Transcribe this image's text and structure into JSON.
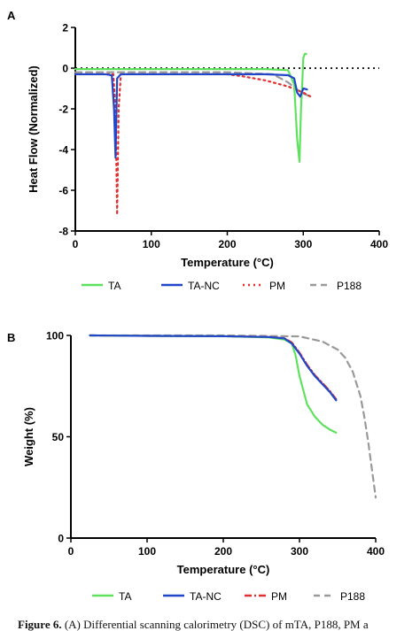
{
  "chart_data": [
    {
      "panel": "A",
      "type": "line",
      "title": "",
      "xlabel": "Temperature (°C)",
      "ylabel": "Heat Flow (Normalized)",
      "xlim": [
        0,
        400
      ],
      "ylim": [
        -8,
        2
      ],
      "xticks": [
        0,
        100,
        200,
        300,
        400
      ],
      "yticks": [
        2,
        0,
        -2,
        -4,
        -6,
        -8
      ],
      "reference_line": {
        "y": 0,
        "style": "dotted",
        "color": "#000000"
      },
      "legend_position": "bottom",
      "series": [
        {
          "name": "TA",
          "color": "#5ee25e",
          "dash": "solid",
          "x": [
            0,
            50,
            100,
            200,
            250,
            280,
            288,
            292,
            295,
            297,
            299,
            300,
            302,
            304
          ],
          "y": [
            -0.05,
            -0.05,
            -0.05,
            -0.05,
            -0.05,
            -0.1,
            -0.8,
            -3.5,
            -4.6,
            -2.0,
            -0.5,
            0.5,
            0.7,
            0.7
          ]
        },
        {
          "name": "TA-NC",
          "color": "#2146c7",
          "dash": "solid",
          "x": [
            0,
            40,
            48,
            51,
            53,
            55,
            60,
            100,
            200,
            250,
            280,
            288,
            292,
            296,
            300,
            305
          ],
          "y": [
            -0.3,
            -0.3,
            -0.35,
            -2.0,
            -4.4,
            -0.5,
            -0.3,
            -0.3,
            -0.3,
            -0.3,
            -0.35,
            -0.5,
            -1.2,
            -1.4,
            -1.0,
            -1.05
          ]
        },
        {
          "name": "PM",
          "color": "#e03030",
          "dash": "dotted",
          "x": [
            0,
            50,
            53,
            55,
            57,
            60,
            100,
            200,
            220,
            250,
            280,
            300,
            310
          ],
          "y": [
            -0.3,
            -0.3,
            -2.0,
            -7.2,
            -2.0,
            -0.3,
            -0.3,
            -0.3,
            -0.4,
            -0.6,
            -0.9,
            -1.2,
            -1.4
          ]
        },
        {
          "name": "P188",
          "color": "#999999",
          "dash": "dashed",
          "x": [
            0,
            50,
            100,
            200,
            260,
            280,
            290,
            300,
            310
          ],
          "y": [
            -0.2,
            -0.2,
            -0.2,
            -0.2,
            -0.3,
            -0.7,
            -1.0,
            -1.25,
            -1.4
          ]
        }
      ]
    },
    {
      "panel": "B",
      "type": "line",
      "title": "",
      "xlabel": "Temperature (°C)",
      "ylabel": "Weight (%)",
      "xlim": [
        0,
        400
      ],
      "ylim": [
        0,
        100
      ],
      "xticks": [
        0,
        100,
        200,
        300,
        400
      ],
      "yticks": [
        100,
        50,
        0
      ],
      "legend_position": "bottom",
      "series": [
        {
          "name": "TA",
          "color": "#5ee25e",
          "dash": "solid",
          "x": [
            25,
            100,
            200,
            260,
            280,
            290,
            295,
            300,
            310,
            320,
            330,
            340,
            348
          ],
          "y": [
            100,
            99.8,
            99.6,
            99,
            98,
            96,
            90,
            80,
            66,
            60,
            56,
            53.5,
            52
          ]
        },
        {
          "name": "TA-NC",
          "color": "#2146c7",
          "dash": "solid",
          "x": [
            25,
            100,
            200,
            260,
            280,
            290,
            300,
            310,
            320,
            330,
            340,
            348
          ],
          "y": [
            100,
            99.8,
            99.6,
            99.2,
            98.5,
            96,
            91,
            85,
            80,
            76,
            72,
            68
          ]
        },
        {
          "name": "PM",
          "color": "#e03030",
          "dash": "dashdot",
          "x": [
            25,
            100,
            200,
            260,
            280,
            290,
            300,
            310,
            320,
            330,
            340,
            348
          ],
          "y": [
            100,
            99.8,
            99.6,
            99.2,
            98.6,
            96.5,
            91.5,
            85.5,
            80.5,
            76.5,
            72.5,
            68.5
          ]
        },
        {
          "name": "P188",
          "color": "#999999",
          "dash": "dashed",
          "x": [
            25,
            100,
            200,
            300,
            330,
            350,
            360,
            370,
            380,
            385,
            390,
            395,
            400
          ],
          "y": [
            100,
            100,
            100,
            99.5,
            97,
            93,
            89,
            82,
            70,
            60,
            48,
            34,
            20
          ]
        }
      ]
    }
  ],
  "panel_labels": [
    "A",
    "B"
  ],
  "caption": {
    "label": "Figure 6.",
    "text": " (A) Differential scanning calorimetry (DSC) of mTA, P188, PM a"
  }
}
